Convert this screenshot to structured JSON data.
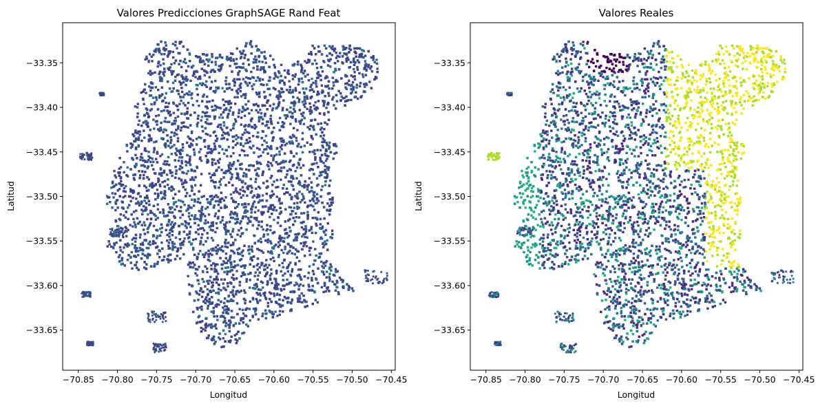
{
  "chart_data": [
    {
      "type": "scatter",
      "title": "Valores Predicciones GraphSAGE Rand Feat",
      "xlabel": "Longitud",
      "ylabel": "Latitud",
      "xlim": [
        -70.87,
        -70.445
      ],
      "ylim": [
        -33.695,
        -33.305
      ],
      "xticks": [
        "−70.85",
        "−70.80",
        "−70.75",
        "−70.70",
        "−70.65",
        "−70.60",
        "−70.55",
        "−70.50",
        "−70.45"
      ],
      "yticks": [
        "−33.35",
        "−33.40",
        "−33.45",
        "−33.50",
        "−33.55",
        "−33.60",
        "−33.65"
      ],
      "colormap": "viridis",
      "grid": false,
      "legend": "none",
      "dominant_colors": [
        "#3b4a87",
        "#3a5a8c",
        "#2a788e",
        "#31688e",
        "#443983"
      ]
    },
    {
      "type": "scatter",
      "title": "Valores Reales",
      "xlabel": "Longitud",
      "ylabel": "Latitud",
      "xlim": [
        -70.87,
        -70.445
      ],
      "ylim": [
        -33.695,
        -33.305
      ],
      "xticks": [
        "−70.85",
        "−70.80",
        "−70.75",
        "−70.70",
        "−70.65",
        "−70.60",
        "−70.55",
        "−70.50",
        "−70.45"
      ],
      "yticks": [
        "−33.35",
        "−33.40",
        "−33.45",
        "−33.50",
        "−33.55",
        "−33.60",
        "−33.65"
      ],
      "colormap": "viridis",
      "grid": false,
      "legend": "none",
      "dominant_colors": [
        "#440154",
        "#3b528b",
        "#21918c",
        "#5ec962",
        "#fde725"
      ]
    }
  ]
}
